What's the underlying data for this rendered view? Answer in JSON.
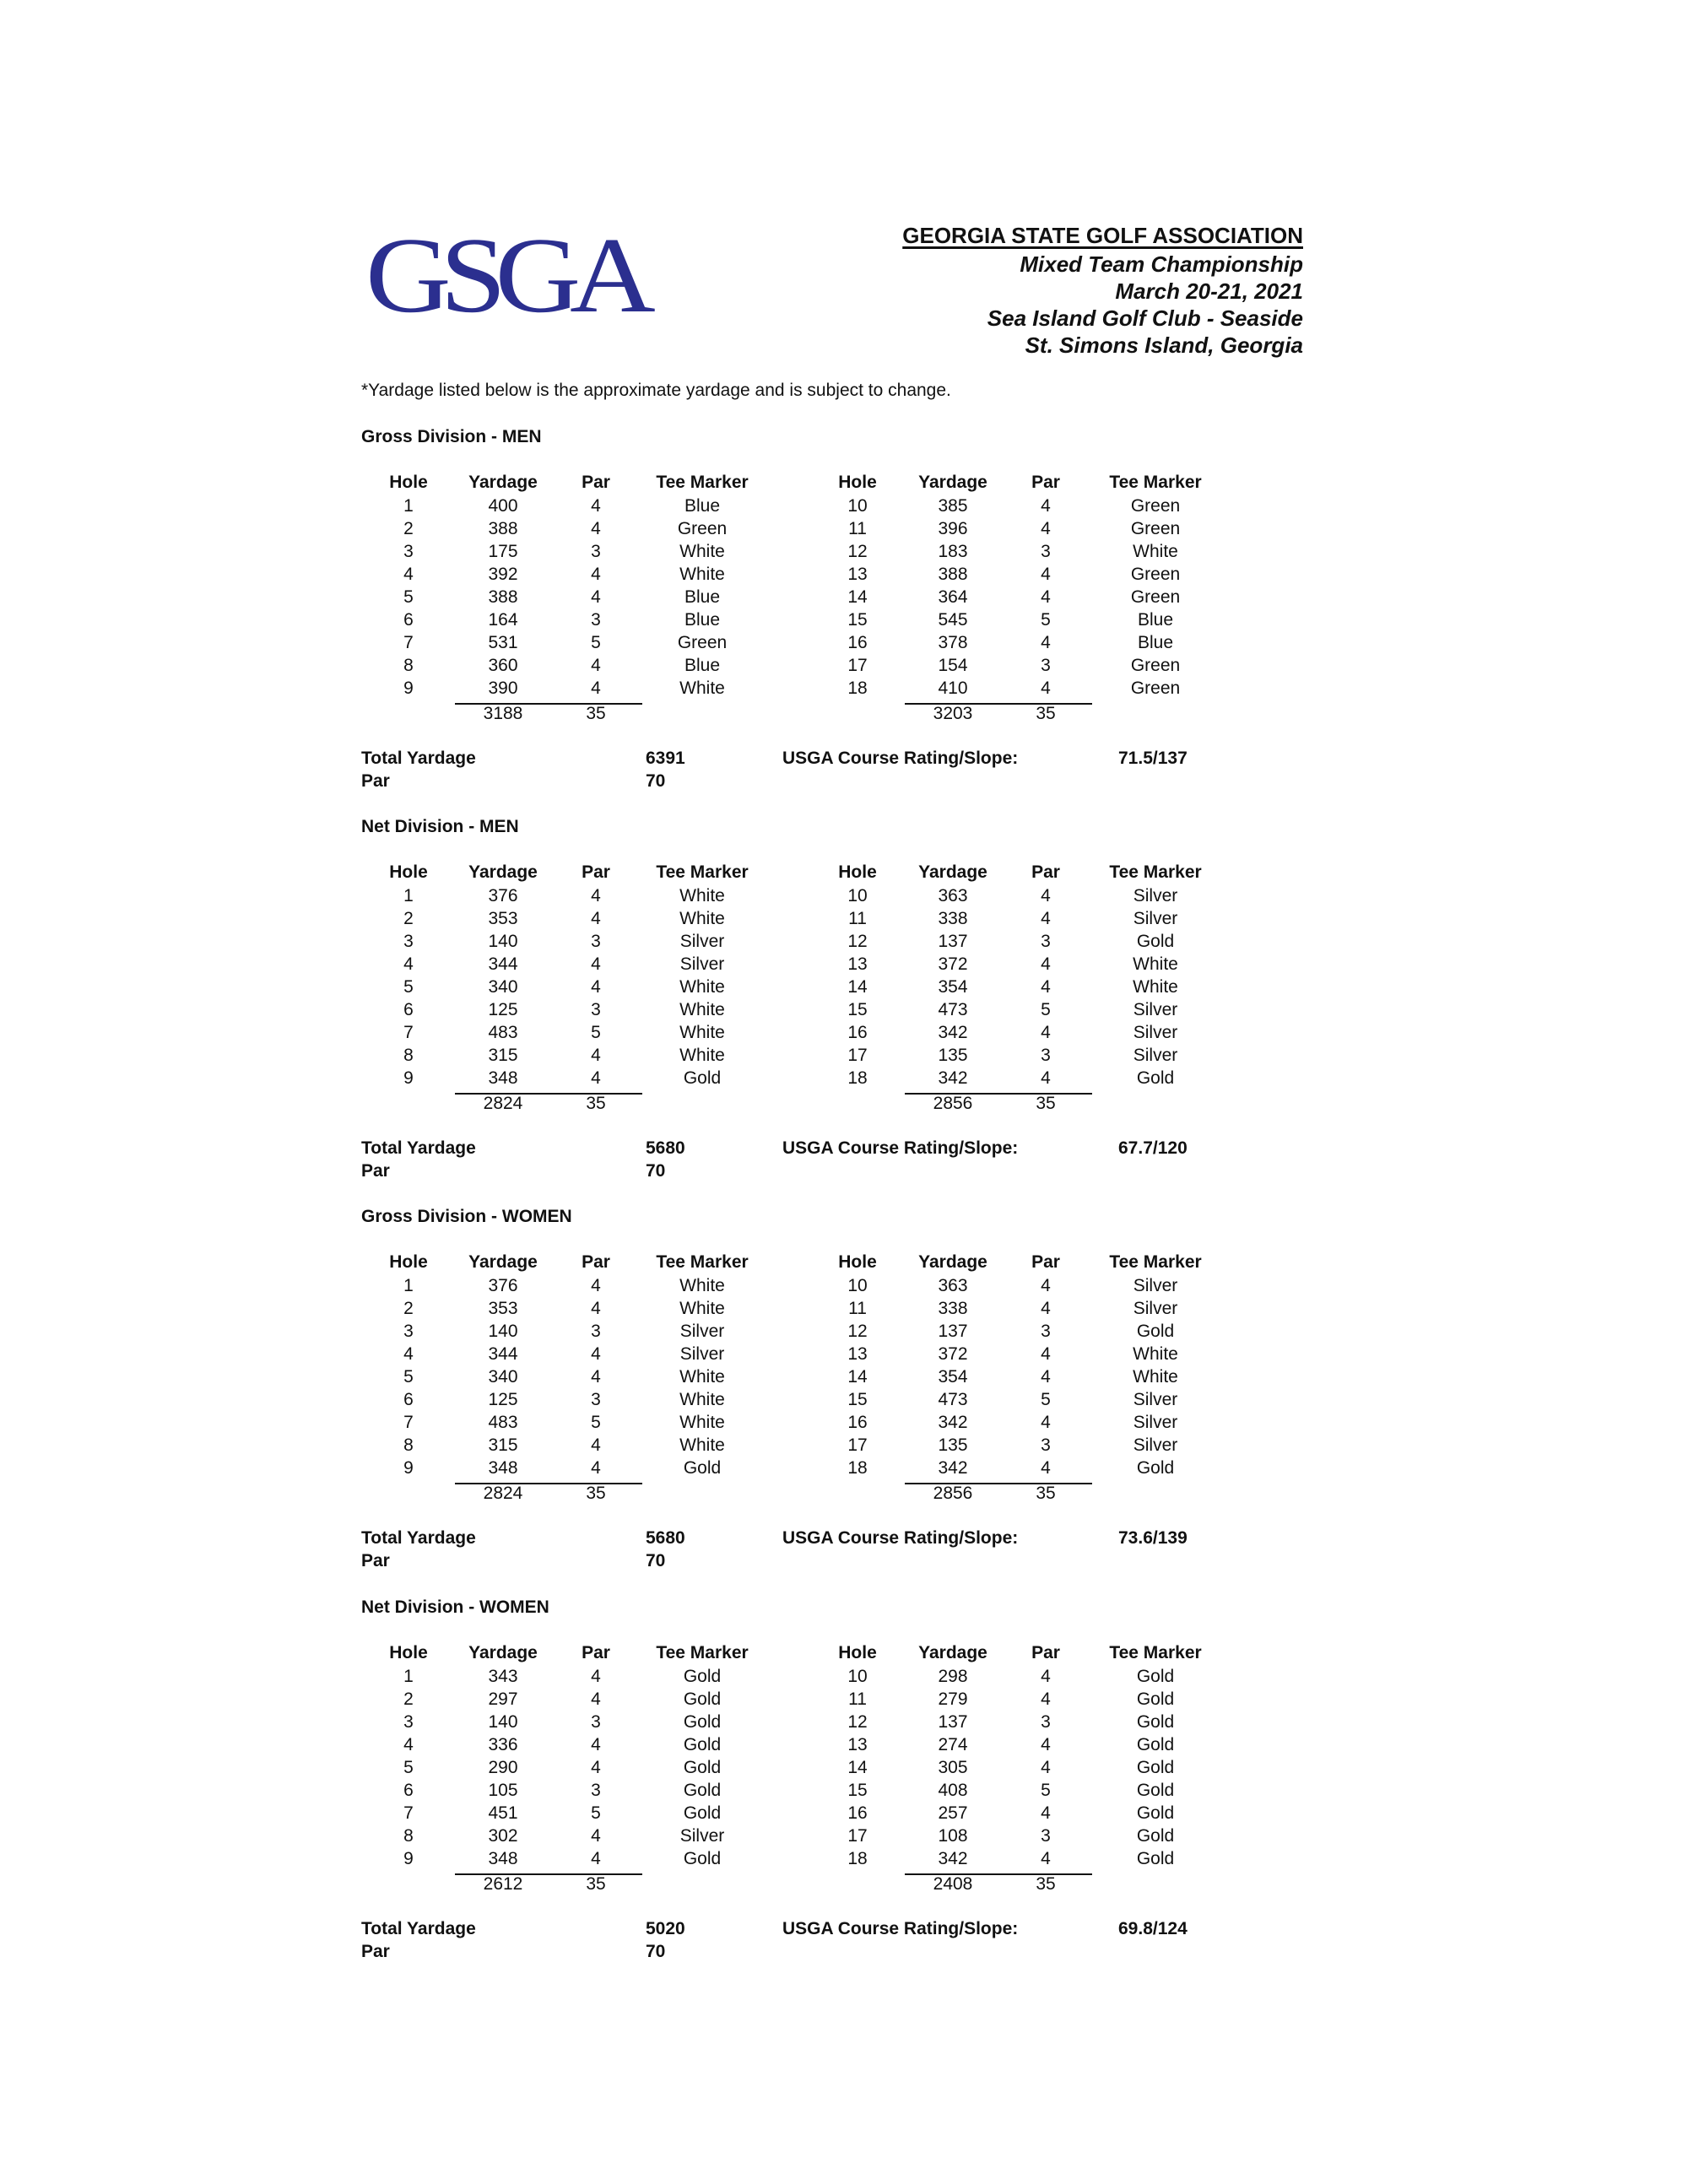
{
  "logo": {
    "text": "GSGA",
    "color": "#2b2f8f"
  },
  "header": {
    "title": "GEORGIA STATE GOLF ASSOCIATION",
    "event": "Mixed Team Championship",
    "dates": "March 20-21, 2021",
    "course": "Sea Island Golf Club - Seaside",
    "location": "St. Simons Island, Georgia"
  },
  "note": "*Yardage listed below is the approximate yardage and is subject to change.",
  "columns": [
    "Hole",
    "Yardage",
    "Par",
    "Tee Marker"
  ],
  "labels": {
    "total_yardage": "Total Yardage",
    "par": "Par",
    "rating": "USGA Course Rating/Slope:"
  },
  "sections": [
    {
      "title": "Gross Division - MEN",
      "front": [
        [
          "1",
          "400",
          "4",
          "Blue"
        ],
        [
          "2",
          "388",
          "4",
          "Green"
        ],
        [
          "3",
          "175",
          "3",
          "White"
        ],
        [
          "4",
          "392",
          "4",
          "White"
        ],
        [
          "5",
          "388",
          "4",
          "Blue"
        ],
        [
          "6",
          "164",
          "3",
          "Blue"
        ],
        [
          "7",
          "531",
          "5",
          "Green"
        ],
        [
          "8",
          "360",
          "4",
          "Blue"
        ],
        [
          "9",
          "390",
          "4",
          "White"
        ]
      ],
      "front_total": {
        "yardage": "3188",
        "par": "35"
      },
      "back": [
        [
          "10",
          "385",
          "4",
          "Green"
        ],
        [
          "11",
          "396",
          "4",
          "Green"
        ],
        [
          "12",
          "183",
          "3",
          "White"
        ],
        [
          "13",
          "388",
          "4",
          "Green"
        ],
        [
          "14",
          "364",
          "4",
          "Green"
        ],
        [
          "15",
          "545",
          "5",
          "Blue"
        ],
        [
          "16",
          "378",
          "4",
          "Blue"
        ],
        [
          "17",
          "154",
          "3",
          "Green"
        ],
        [
          "18",
          "410",
          "4",
          "Green"
        ]
      ],
      "back_total": {
        "yardage": "3203",
        "par": "35"
      },
      "total_yardage": "6391",
      "par": "70",
      "rating": "71.5/137"
    },
    {
      "title": "Net Division - MEN",
      "front": [
        [
          "1",
          "376",
          "4",
          "White"
        ],
        [
          "2",
          "353",
          "4",
          "White"
        ],
        [
          "3",
          "140",
          "3",
          "Silver"
        ],
        [
          "4",
          "344",
          "4",
          "Silver"
        ],
        [
          "5",
          "340",
          "4",
          "White"
        ],
        [
          "6",
          "125",
          "3",
          "White"
        ],
        [
          "7",
          "483",
          "5",
          "White"
        ],
        [
          "8",
          "315",
          "4",
          "White"
        ],
        [
          "9",
          "348",
          "4",
          "Gold"
        ]
      ],
      "front_total": {
        "yardage": "2824",
        "par": "35"
      },
      "back": [
        [
          "10",
          "363",
          "4",
          "Silver"
        ],
        [
          "11",
          "338",
          "4",
          "Silver"
        ],
        [
          "12",
          "137",
          "3",
          "Gold"
        ],
        [
          "13",
          "372",
          "4",
          "White"
        ],
        [
          "14",
          "354",
          "4",
          "White"
        ],
        [
          "15",
          "473",
          "5",
          "Silver"
        ],
        [
          "16",
          "342",
          "4",
          "Silver"
        ],
        [
          "17",
          "135",
          "3",
          "Silver"
        ],
        [
          "18",
          "342",
          "4",
          "Gold"
        ]
      ],
      "back_total": {
        "yardage": "2856",
        "par": "35"
      },
      "total_yardage": "5680",
      "par": "70",
      "rating": "67.7/120"
    },
    {
      "title": "Gross Division - WOMEN",
      "front": [
        [
          "1",
          "376",
          "4",
          "White"
        ],
        [
          "2",
          "353",
          "4",
          "White"
        ],
        [
          "3",
          "140",
          "3",
          "Silver"
        ],
        [
          "4",
          "344",
          "4",
          "Silver"
        ],
        [
          "5",
          "340",
          "4",
          "White"
        ],
        [
          "6",
          "125",
          "3",
          "White"
        ],
        [
          "7",
          "483",
          "5",
          "White"
        ],
        [
          "8",
          "315",
          "4",
          "White"
        ],
        [
          "9",
          "348",
          "4",
          "Gold"
        ]
      ],
      "front_total": {
        "yardage": "2824",
        "par": "35"
      },
      "back": [
        [
          "10",
          "363",
          "4",
          "Silver"
        ],
        [
          "11",
          "338",
          "4",
          "Silver"
        ],
        [
          "12",
          "137",
          "3",
          "Gold"
        ],
        [
          "13",
          "372",
          "4",
          "White"
        ],
        [
          "14",
          "354",
          "4",
          "White"
        ],
        [
          "15",
          "473",
          "5",
          "Silver"
        ],
        [
          "16",
          "342",
          "4",
          "Silver"
        ],
        [
          "17",
          "135",
          "3",
          "Silver"
        ],
        [
          "18",
          "342",
          "4",
          "Gold"
        ]
      ],
      "back_total": {
        "yardage": "2856",
        "par": "35"
      },
      "total_yardage": "5680",
      "par": "70",
      "rating": "73.6/139"
    },
    {
      "title": "Net Division - WOMEN",
      "front": [
        [
          "1",
          "343",
          "4",
          "Gold"
        ],
        [
          "2",
          "297",
          "4",
          "Gold"
        ],
        [
          "3",
          "140",
          "3",
          "Gold"
        ],
        [
          "4",
          "336",
          "4",
          "Gold"
        ],
        [
          "5",
          "290",
          "4",
          "Gold"
        ],
        [
          "6",
          "105",
          "3",
          "Gold"
        ],
        [
          "7",
          "451",
          "5",
          "Gold"
        ],
        [
          "8",
          "302",
          "4",
          "Silver"
        ],
        [
          "9",
          "348",
          "4",
          "Gold"
        ]
      ],
      "front_total": {
        "yardage": "2612",
        "par": "35"
      },
      "back": [
        [
          "10",
          "298",
          "4",
          "Gold"
        ],
        [
          "11",
          "279",
          "4",
          "Gold"
        ],
        [
          "12",
          "137",
          "3",
          "Gold"
        ],
        [
          "13",
          "274",
          "4",
          "Gold"
        ],
        [
          "14",
          "305",
          "4",
          "Gold"
        ],
        [
          "15",
          "408",
          "5",
          "Gold"
        ],
        [
          "16",
          "257",
          "4",
          "Gold"
        ],
        [
          "17",
          "108",
          "3",
          "Gold"
        ],
        [
          "18",
          "342",
          "4",
          "Gold"
        ]
      ],
      "back_total": {
        "yardage": "2408",
        "par": "35"
      },
      "total_yardage": "5020",
      "par": "70",
      "rating": "69.8/124"
    }
  ]
}
